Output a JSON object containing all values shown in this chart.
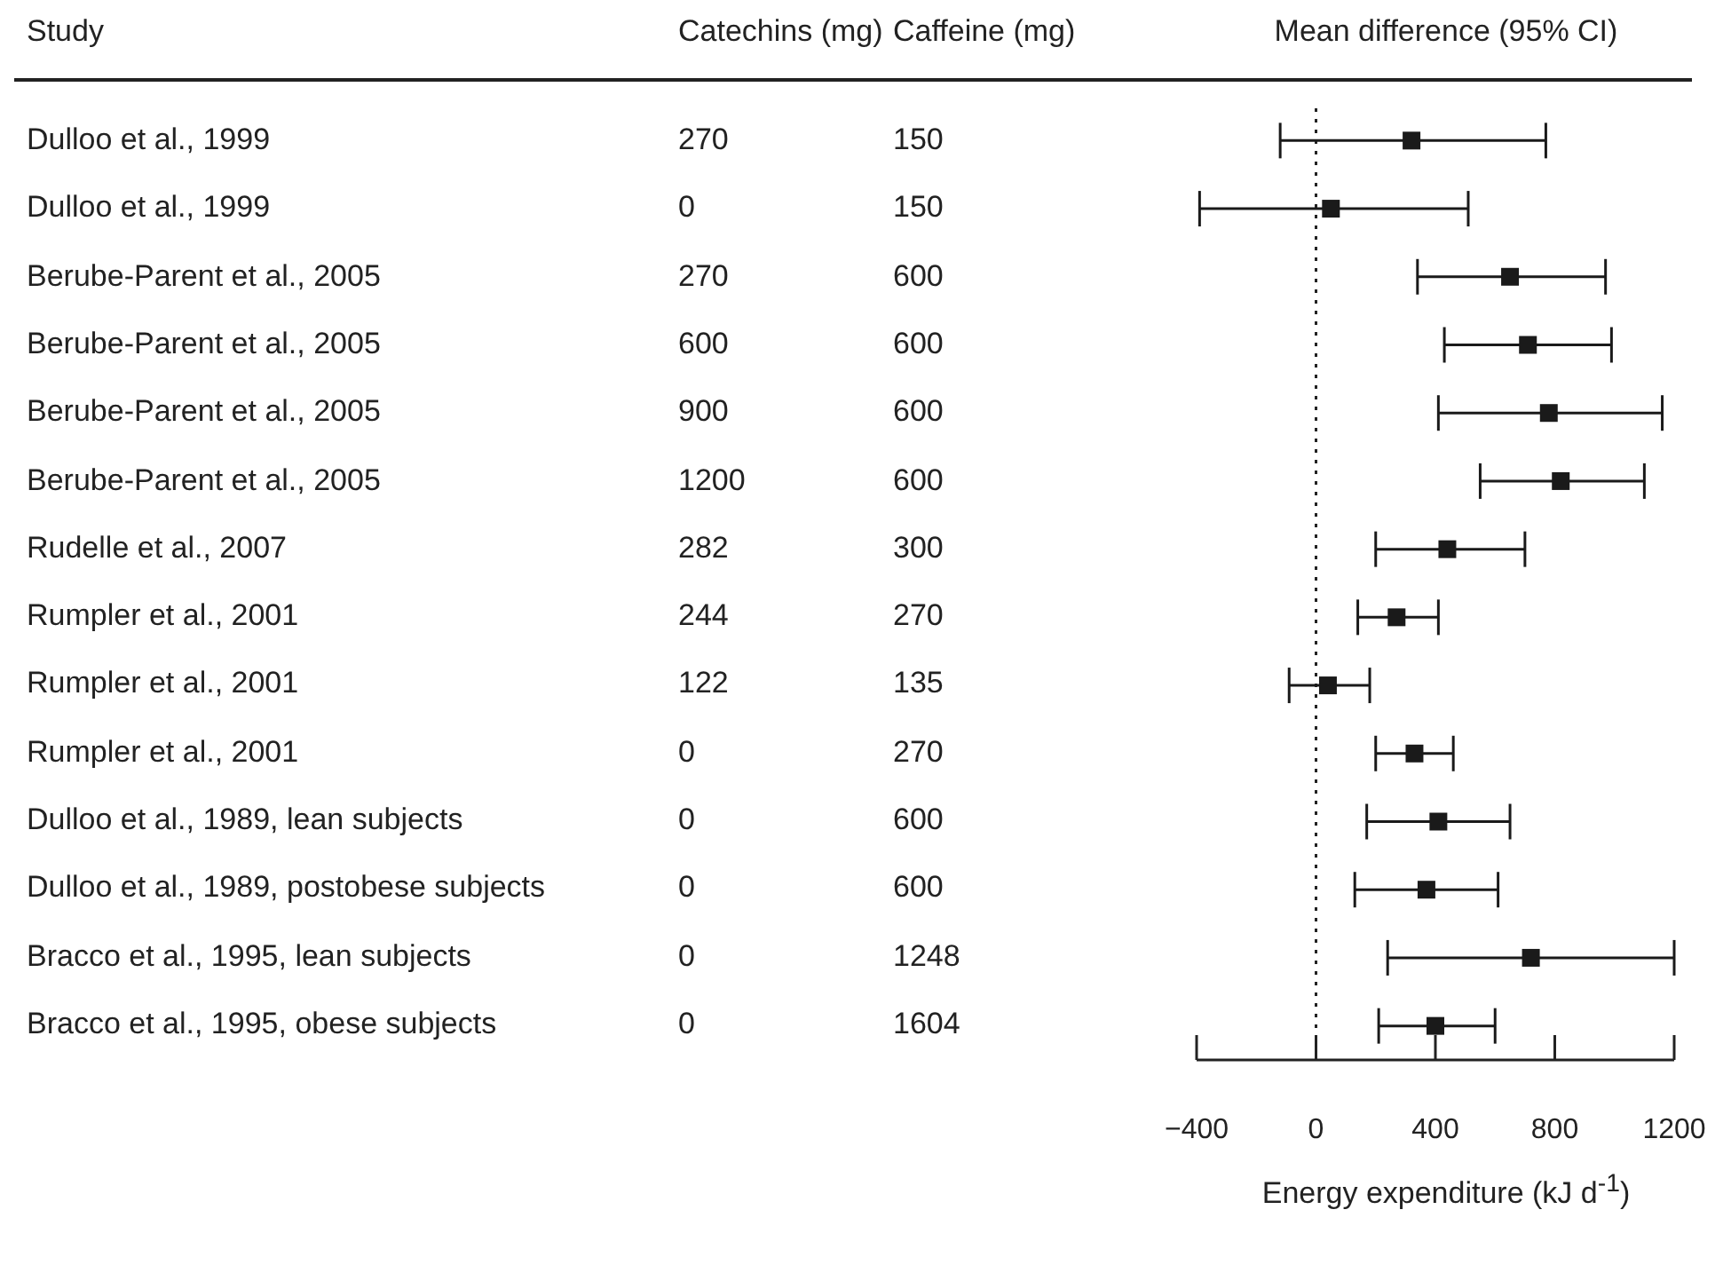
{
  "chart_data": [
    {
      "type": "other",
      "ylabel": "Study",
      "categories": [
        "Dulloo et al., 1999",
        "Dulloo et al., 1999",
        "Berube-Parent et al., 2005",
        "Berube-Parent et al., 2005",
        "Berube-Parent et al., 2005",
        "Berube-Parent et al., 2005",
        "Rudelle et al., 2007",
        "Rumpler et al., 2001",
        "Rumpler et al., 2001",
        "Rumpler et al., 2001",
        "Dulloo et al., 1989, lean subjects",
        "Dulloo et al., 1989, postobese subjects",
        "Bracco et al., 1995, lean subjects",
        "Bracco et al., 1995, obese subjects"
      ],
      "series": [
        {
          "name": "Catechins (mg)",
          "values": [
            270,
            0,
            270,
            600,
            900,
            1200,
            282,
            244,
            122,
            0,
            0,
            0,
            0,
            0
          ]
        },
        {
          "name": "Caffeine (mg)",
          "values": [
            150,
            150,
            600,
            600,
            600,
            600,
            300,
            270,
            135,
            270,
            600,
            600,
            1248,
            1604
          ]
        }
      ],
      "data_labels": true
    },
    {
      "type": "scatter",
      "title": "Mean difference (95% CI)",
      "xlabel": "Energy expenditure (kJ d$^{-1}$)",
      "orientation": "horizontal",
      "marker": "square",
      "color": "#1a1a1a",
      "categories": [
        null,
        null,
        null,
        null,
        null,
        null,
        null,
        null,
        null,
        null,
        null,
        null,
        null,
        null
      ],
      "values": [
        320,
        50,
        650,
        710,
        780,
        820,
        440,
        270,
        40,
        330,
        410,
        370,
        720,
        400
      ],
      "errors": [
        [
          -120,
          770
        ],
        [
          -390,
          510
        ],
        [
          340,
          970
        ],
        [
          430,
          990
        ],
        [
          410,
          1160
        ],
        [
          550,
          1100
        ],
        [
          200,
          700
        ],
        [
          140,
          410
        ],
        [
          -90,
          180
        ],
        [
          200,
          460
        ],
        [
          170,
          650
        ],
        [
          130,
          610
        ],
        [
          240,
          1200
        ],
        [
          210,
          600
        ]
      ],
      "xlim": [
        -400,
        1200
      ],
      "xticks": [
        {
          "value": -400,
          "label": "−400"
        },
        0,
        400,
        800,
        1200
      ],
      "ref_lines": [
        {
          "axis": "x",
          "value": 0,
          "line_style": "dotted"
        }
      ]
    }
  ]
}
